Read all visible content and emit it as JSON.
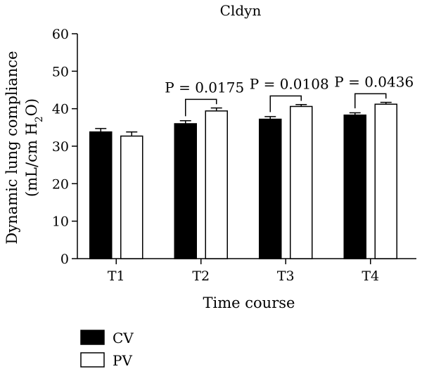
{
  "chart_data": {
    "type": "bar",
    "title": "Cldyn",
    "xlabel": "Time course",
    "ylabel_line1": "Dynamic lung compliance",
    "ylabel_line2_pre": "(mL/cm H",
    "ylabel_line2_sub": "2",
    "ylabel_line2_post": "O)",
    "ylim": [
      0,
      60
    ],
    "yticks": [
      "0",
      "10",
      "20",
      "30",
      "40",
      "50",
      "60"
    ],
    "categories": [
      "T1",
      "T2",
      "T3",
      "T4"
    ],
    "series": [
      {
        "name": "CV",
        "values": [
          33.8,
          36.0,
          37.2,
          38.3
        ],
        "errors": [
          0.9,
          0.8,
          0.7,
          0.6
        ],
        "color": "#000000"
      },
      {
        "name": "PV",
        "values": [
          32.7,
          39.4,
          40.6,
          41.2
        ],
        "errors": [
          1.1,
          0.8,
          0.5,
          0.5
        ],
        "color": "#ffffff"
      }
    ],
    "annotations": [
      {
        "category_index": 1,
        "text": "P = 0.0175"
      },
      {
        "category_index": 2,
        "text": "P = 0.0108"
      },
      {
        "category_index": 3,
        "text": "P = 0.0436"
      }
    ],
    "legend_position": "bottom-left"
  }
}
